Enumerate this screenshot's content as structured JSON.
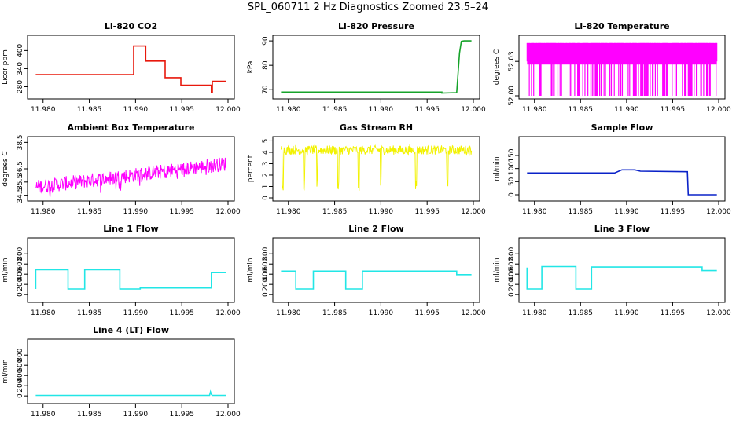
{
  "page_title": "SPL_060711  2 Hz Diagnostics Zoomed 23.5–24",
  "chart_data": [
    {
      "id": "co2",
      "type": "line",
      "title": "Li-820 CO2",
      "ylabel": "Licor ppm",
      "color": "#e8180c",
      "xlim": [
        11.979,
        12.0
      ],
      "xticks": [
        "11.980",
        "11.985",
        "11.990",
        "11.995",
        "12.000"
      ],
      "ylim": [
        250,
        440
      ],
      "yticks": [
        {
          "v": 280,
          "label": "280"
        },
        {
          "v": 340,
          "label": "340"
        },
        {
          "v": 400,
          "label": "400"
        }
      ],
      "x": [
        11.979,
        11.9898,
        11.9898,
        11.9911,
        11.9911,
        11.9932,
        11.9932,
        11.9949,
        11.9949,
        11.9982,
        11.9982,
        11.9983,
        11.9983,
        12.0
      ],
      "y": [
        320,
        320,
        415,
        415,
        365,
        365,
        310,
        310,
        285,
        285,
        260,
        260,
        298,
        298
      ]
    },
    {
      "id": "pressure",
      "type": "line",
      "title": "Li-820 Pressure",
      "ylabel": "kPa",
      "color": "#16a32a",
      "xlim": [
        11.979,
        12.0
      ],
      "xticks": [
        "11.980",
        "11.985",
        "11.990",
        "11.995",
        "12.000"
      ],
      "ylim": [
        67.5,
        91
      ],
      "yticks": [
        {
          "v": 70,
          "label": "70"
        },
        {
          "v": 80,
          "label": "80"
        },
        {
          "v": 90,
          "label": "90"
        }
      ],
      "x": [
        11.979,
        11.9966,
        11.9966,
        11.9982,
        11.9985,
        11.9987,
        11.999,
        12.0
      ],
      "y": [
        69.0,
        69.0,
        68.6,
        68.8,
        85,
        89.8,
        90.0,
        90.0
      ]
    },
    {
      "id": "li820temp",
      "type": "line",
      "title": "Li-820 Temperature",
      "ylabel": "degrees C",
      "color": "#ff00ff",
      "xlim": [
        11.979,
        12.0
      ],
      "xticks": [
        "11.980",
        "11.985",
        "11.990",
        "11.995",
        "12.000"
      ],
      "ylim": [
        52.0,
        52.05
      ],
      "yticks": [
        {
          "v": 52.0,
          "label": "52.00"
        },
        {
          "v": 52.03,
          "label": "52.03"
        }
      ],
      "x": [],
      "y": []
    },
    {
      "id": "boxtemp",
      "type": "line",
      "title": "Ambient Box Temperature",
      "ylabel": "degrees C",
      "color": "#ff00ff",
      "xlim": [
        11.979,
        12.0
      ],
      "xticks": [
        "11.980",
        "11.985",
        "11.990",
        "11.995",
        "12.000"
      ],
      "ylim": [
        34.3,
        38.7
      ],
      "yticks": [
        {
          "v": 34.5,
          "label": "34.5"
        },
        {
          "v": 35.5,
          "label": "35.5"
        },
        {
          "v": 36.5,
          "label": "36.5"
        },
        {
          "v": 38.5,
          "label": "38.5"
        }
      ],
      "x": [
        11.979,
        12.0
      ],
      "y": [
        35.1,
        36.9
      ]
    },
    {
      "id": "rh",
      "type": "line",
      "title": "Gas Stream RH",
      "ylabel": "percent",
      "color": "#f2f200",
      "xlim": [
        11.979,
        12.0
      ],
      "xticks": [
        "11.980",
        "11.985",
        "11.990",
        "11.995",
        "12.000"
      ],
      "ylim": [
        0,
        5.1
      ],
      "yticks": [
        {
          "v": 0,
          "label": "0"
        },
        {
          "v": 1,
          "label": "1"
        },
        {
          "v": 2,
          "label": "2"
        },
        {
          "v": 3,
          "label": "3"
        },
        {
          "v": 4,
          "label": "4"
        },
        {
          "v": 5,
          "label": "5"
        }
      ],
      "x": [
        11.979,
        12.0
      ],
      "y": [
        4.2,
        4.2
      ]
    },
    {
      "id": "sampleflow",
      "type": "line",
      "title": "Sample Flow",
      "ylabel": "ml/min",
      "color": "#0a22c8",
      "xlim": [
        11.979,
        12.0
      ],
      "xticks": [
        "11.980",
        "11.985",
        "11.990",
        "11.995",
        "12.000"
      ],
      "ylim": [
        -12,
        210
      ],
      "yticks": [
        {
          "v": 0,
          "label": "0"
        },
        {
          "v": 50,
          "label": "50"
        },
        {
          "v": 100,
          "label": "100"
        },
        {
          "v": 150,
          "label": "150"
        }
      ],
      "x": [
        11.979,
        11.9887,
        11.9895,
        11.9909,
        11.9915,
        11.9966,
        11.9967,
        12.0
      ],
      "y": [
        83,
        83,
        95,
        95,
        90,
        88,
        0,
        0
      ]
    },
    {
      "id": "line1",
      "type": "line",
      "title": "Line 1 Flow",
      "ylabel": "ml/min",
      "color": "#22e6e6",
      "xlim": [
        11.979,
        12.0
      ],
      "xticks": [
        "11.980",
        "11.985",
        "11.990",
        "11.995",
        "12.000"
      ],
      "ylim": [
        -90,
        1050
      ],
      "yticks": [
        {
          "v": 0,
          "label": "0"
        },
        {
          "v": 200,
          "label": "200"
        },
        {
          "v": 400,
          "label": "400"
        },
        {
          "v": 600,
          "label": "600"
        },
        {
          "v": 800,
          "label": "800"
        }
      ],
      "x": [
        11.979,
        11.9792,
        11.9792,
        11.9827,
        11.9827,
        11.9845,
        11.9845,
        11.9883,
        11.9883,
        11.9905,
        11.9905,
        11.9982,
        11.9982,
        12.0
      ],
      "y": [
        110,
        110,
        490,
        490,
        110,
        110,
        490,
        490,
        110,
        110,
        130,
        130,
        430,
        430
      ]
    },
    {
      "id": "line2",
      "type": "line",
      "title": "Line 2 Flow",
      "ylabel": "ml/min",
      "color": "#22e6e6",
      "xlim": [
        11.979,
        12.0
      ],
      "xticks": [
        "11.980",
        "11.985",
        "11.990",
        "11.995",
        "12.000"
      ],
      "ylim": [
        -90,
        1050
      ],
      "yticks": [
        {
          "v": 0,
          "label": "0"
        },
        {
          "v": 200,
          "label": "200"
        },
        {
          "v": 400,
          "label": "400"
        },
        {
          "v": 600,
          "label": "600"
        },
        {
          "v": 800,
          "label": "800"
        }
      ],
      "x": [
        11.979,
        11.9808,
        11.9808,
        11.9827,
        11.9827,
        11.9862,
        11.9862,
        11.988,
        11.988,
        11.9982,
        11.9982,
        12.0
      ],
      "y": [
        460,
        460,
        110,
        110,
        460,
        460,
        110,
        110,
        460,
        460,
        390,
        390
      ]
    },
    {
      "id": "line3",
      "type": "line",
      "title": "Line 3 Flow",
      "ylabel": "ml/min",
      "color": "#22e6e6",
      "xlim": [
        11.979,
        12.0
      ],
      "xticks": [
        "11.980",
        "11.985",
        "11.990",
        "11.995",
        "12.000"
      ],
      "ylim": [
        -90,
        1050
      ],
      "yticks": [
        {
          "v": 0,
          "label": "0"
        },
        {
          "v": 200,
          "label": "200"
        },
        {
          "v": 400,
          "label": "400"
        },
        {
          "v": 600,
          "label": "600"
        },
        {
          "v": 800,
          "label": "800"
        }
      ],
      "x": [
        11.979,
        11.9792,
        11.9792,
        11.9808,
        11.9808,
        11.9845,
        11.9845,
        11.9862,
        11.9862,
        11.9982,
        11.9982,
        12.0
      ],
      "y": [
        530,
        530,
        110,
        110,
        550,
        550,
        110,
        110,
        540,
        540,
        470,
        470
      ]
    },
    {
      "id": "line4",
      "type": "line",
      "title": "Line 4 (LT) Flow",
      "ylabel": "ml/min",
      "color": "#22e6e6",
      "xlim": [
        11.979,
        12.0
      ],
      "xticks": [
        "11.980",
        "11.985",
        "11.990",
        "11.995",
        "12.000"
      ],
      "ylim": [
        -90,
        1050
      ],
      "yticks": [
        {
          "v": 0,
          "label": "0"
        },
        {
          "v": 200,
          "label": "200"
        },
        {
          "v": 400,
          "label": "400"
        },
        {
          "v": 600,
          "label": "600"
        },
        {
          "v": 800,
          "label": "800"
        }
      ],
      "x": [
        11.979,
        11.998,
        11.9981,
        11.9982,
        11.9983,
        12.0
      ],
      "y": [
        10,
        10,
        80,
        30,
        10,
        10
      ]
    }
  ]
}
